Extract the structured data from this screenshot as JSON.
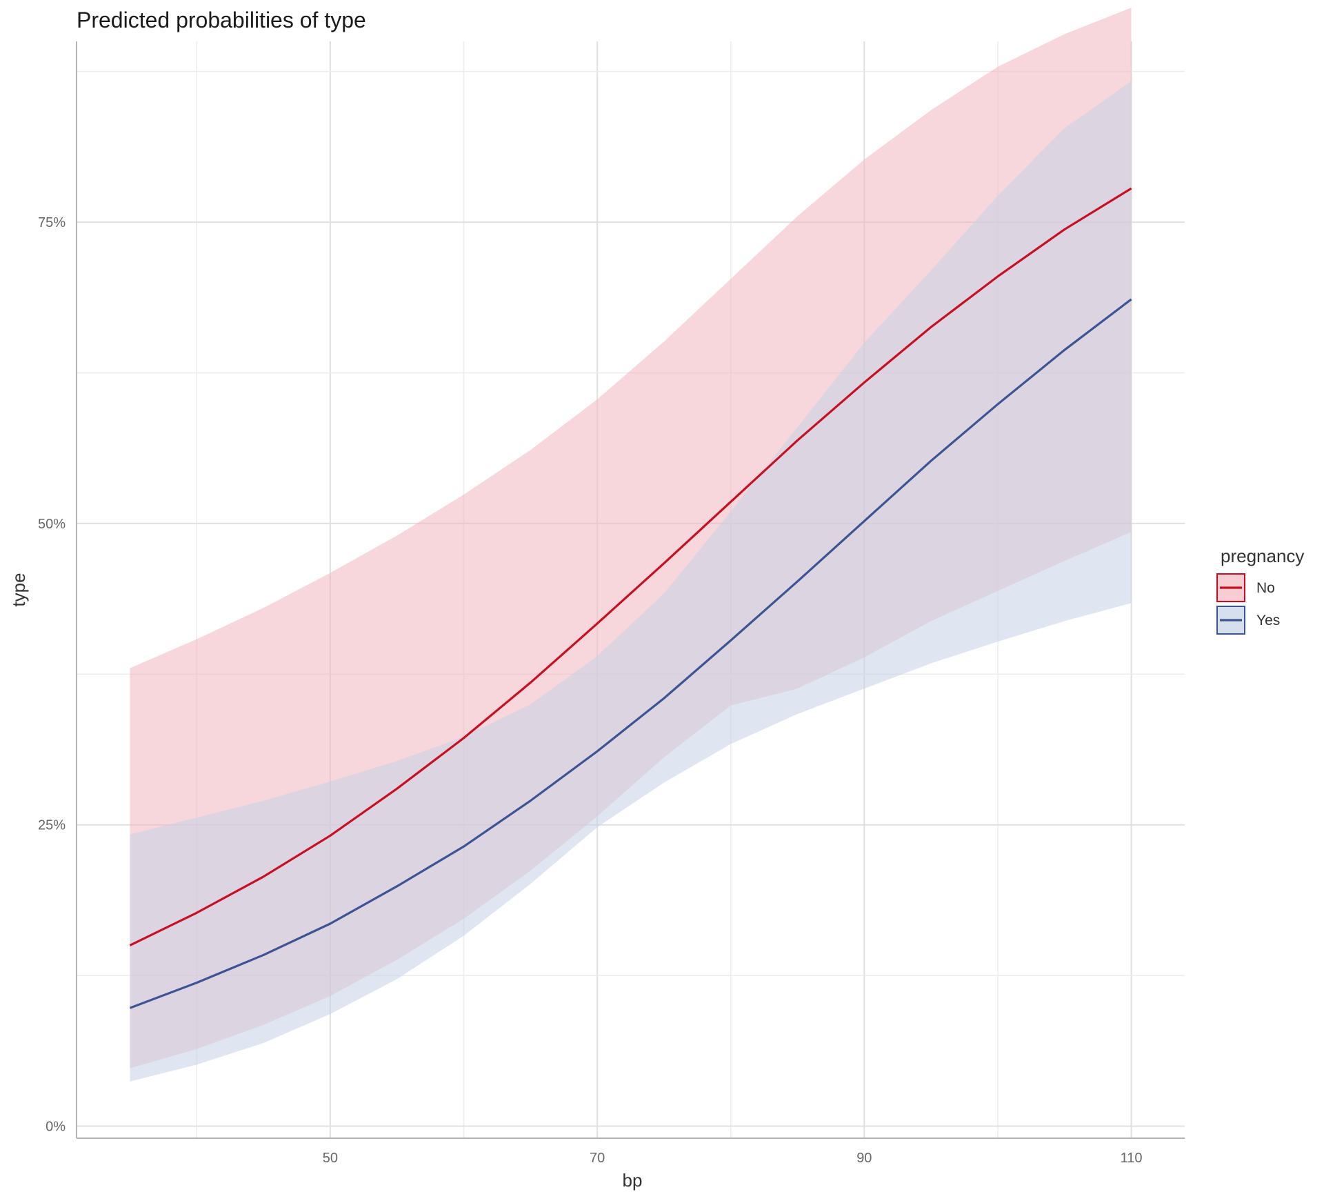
{
  "chart_data": {
    "type": "line",
    "title": "Predicted probabilities of type",
    "xlabel": "bp",
    "ylabel": "type",
    "x_ticks": [
      50,
      70,
      90,
      110
    ],
    "x_tick_labels": [
      "50",
      "70",
      "90",
      "110"
    ],
    "y_ticks": [
      0,
      0.25,
      0.5,
      0.75
    ],
    "y_tick_labels": [
      "0%",
      "25%",
      "50%",
      "75%"
    ],
    "xlim": [
      31,
      114
    ],
    "ylim": [
      -0.01,
      0.9
    ],
    "grid": true,
    "legend": {
      "title": "pregnancy",
      "position": "right"
    },
    "x": [
      35,
      40,
      45,
      50,
      55,
      60,
      65,
      70,
      75,
      80,
      85,
      90,
      95,
      100,
      105,
      110
    ],
    "series": [
      {
        "name": "No",
        "color": "#C80F22",
        "fill": "#F3B7BF",
        "values": [
          0.15,
          0.177,
          0.207,
          0.241,
          0.28,
          0.322,
          0.368,
          0.417,
          0.467,
          0.518,
          0.569,
          0.617,
          0.663,
          0.705,
          0.744,
          0.778
        ],
        "lower": [
          0.048,
          0.064,
          0.084,
          0.108,
          0.138,
          0.172,
          0.212,
          0.257,
          0.306,
          0.349,
          0.363,
          0.389,
          0.419,
          0.444,
          0.469,
          0.493
        ],
        "upper": [
          0.38,
          0.404,
          0.43,
          0.459,
          0.49,
          0.524,
          0.561,
          0.603,
          0.651,
          0.703,
          0.755,
          0.802,
          0.843,
          0.879,
          0.906,
          0.928
        ]
      },
      {
        "name": "Yes",
        "color": "#3C5493",
        "fill": "#C4D2E5",
        "values": [
          0.098,
          0.119,
          0.142,
          0.168,
          0.199,
          0.232,
          0.27,
          0.311,
          0.355,
          0.403,
          0.452,
          0.502,
          0.552,
          0.599,
          0.644,
          0.686
        ],
        "lower": [
          0.037,
          0.051,
          0.069,
          0.093,
          0.122,
          0.158,
          0.201,
          0.248,
          0.285,
          0.317,
          0.342,
          0.363,
          0.384,
          0.402,
          0.419,
          0.434
        ],
        "upper": [
          0.242,
          0.256,
          0.27,
          0.286,
          0.303,
          0.323,
          0.35,
          0.39,
          0.442,
          0.51,
          0.58,
          0.65,
          0.71,
          0.772,
          0.828,
          0.867
        ]
      }
    ]
  }
}
